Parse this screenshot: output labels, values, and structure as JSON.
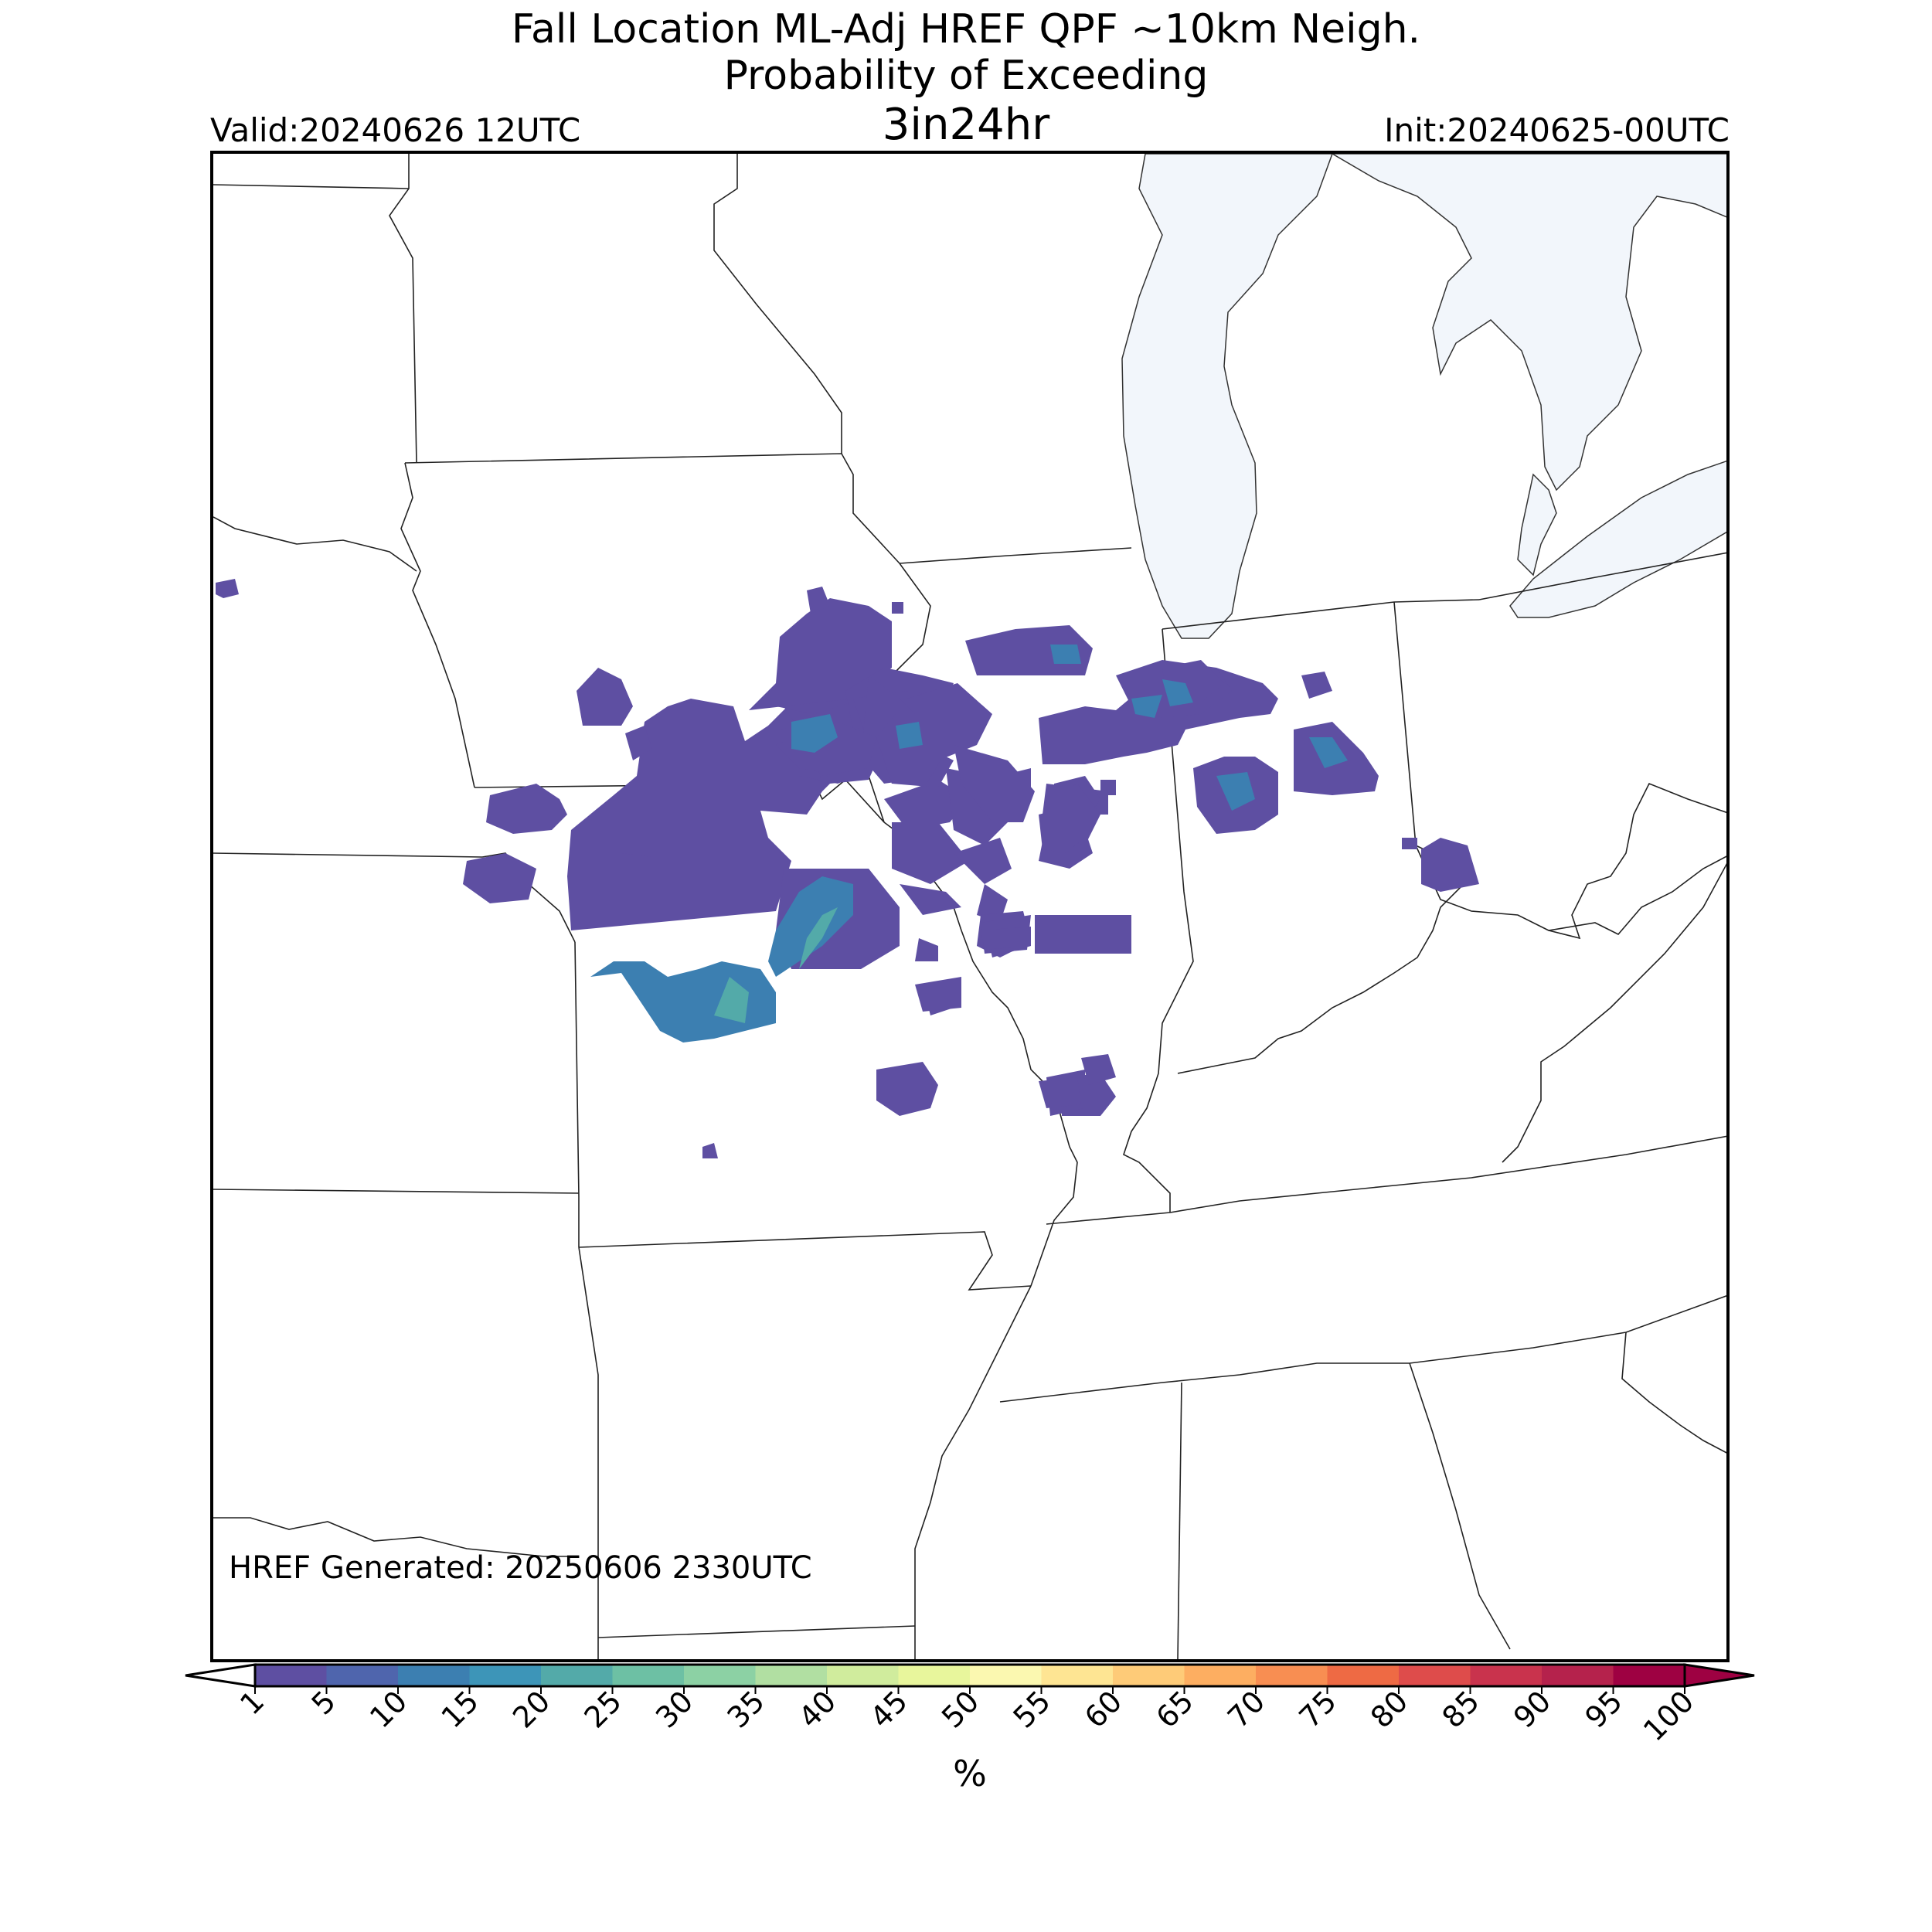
{
  "header": {
    "title_line1": "Fall Location ML-Adj HREF QPF ~10km Neigh.",
    "title_line2": "Probability of Exceeding",
    "title_line3": "3in24hr",
    "valid": "Valid:20240626 12UTC",
    "init": "Init:20240625-00UTC"
  },
  "map": {
    "generated": "HREF Generated: 20250606 2330UTC",
    "water_color": "#f2f6fb",
    "prob_low_color": "#5e4fa2",
    "prob_mid_color": "#3c7fb1",
    "prob_high_color": "#53aaa9"
  },
  "colorbar": {
    "unit": "%",
    "ticks": [
      "1",
      "5",
      "10",
      "15",
      "20",
      "25",
      "30",
      "35",
      "40",
      "45",
      "50",
      "55",
      "60",
      "65",
      "70",
      "75",
      "80",
      "85",
      "90",
      "95",
      "100"
    ],
    "colors": [
      "#5e4fa2",
      "#4f65ad",
      "#3c7fb1",
      "#3d95b8",
      "#53aaa9",
      "#6dc0a4",
      "#8cd1a4",
      "#b1dfa2",
      "#d0ec9d",
      "#e8f69c",
      "#fbf8b0",
      "#fee593",
      "#fecb78",
      "#fdae61",
      "#f88e52",
      "#ee6a44",
      "#de4c4b",
      "#c9334d",
      "#b5224c",
      "#9e0142"
    ]
  }
}
